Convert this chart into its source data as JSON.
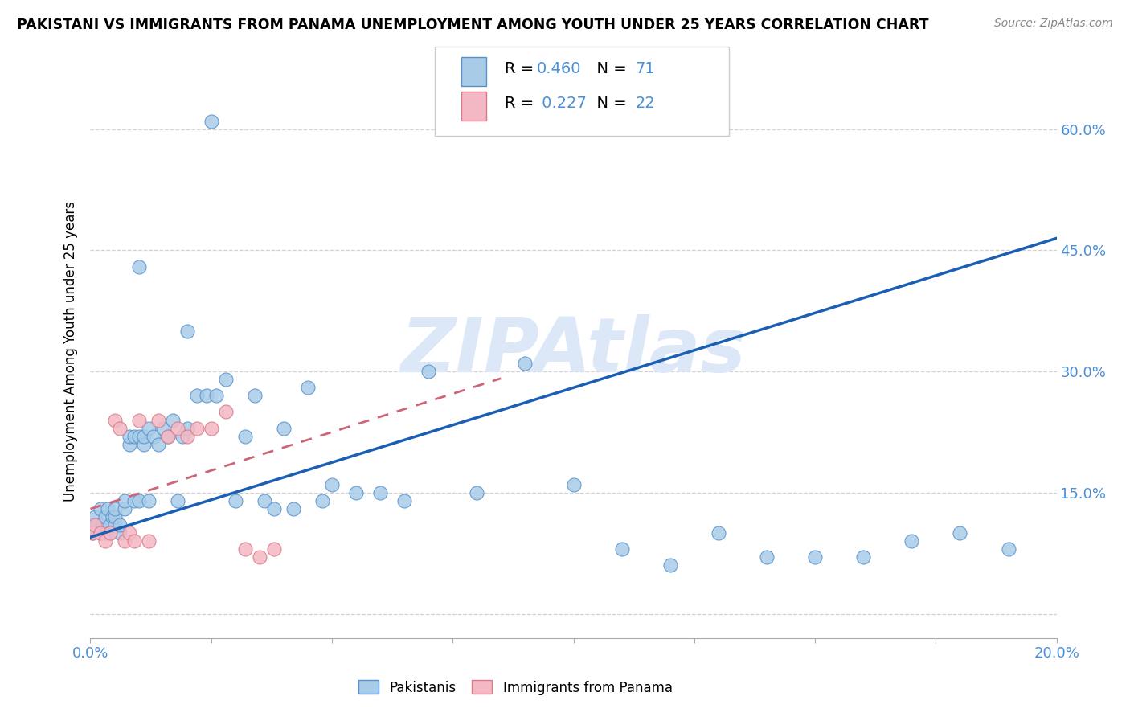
{
  "title": "PAKISTANI VS IMMIGRANTS FROM PANAMA UNEMPLOYMENT AMONG YOUTH UNDER 25 YEARS CORRELATION CHART",
  "source": "Source: ZipAtlas.com",
  "ylabel": "Unemployment Among Youth under 25 years",
  "xrange": [
    0.0,
    0.2
  ],
  "yrange": [
    -0.03,
    0.68
  ],
  "ytick_vals": [
    0.0,
    0.15,
    0.3,
    0.45,
    0.6
  ],
  "ytick_labels": [
    "",
    "15.0%",
    "30.0%",
    "45.0%",
    "60.0%"
  ],
  "xtick_vals": [
    0.0,
    0.025,
    0.05,
    0.075,
    0.1,
    0.125,
    0.15,
    0.175,
    0.2
  ],
  "xtick_labels": [
    "0.0%",
    "",
    "",
    "",
    "",
    "",
    "",
    "",
    "20.0%"
  ],
  "legend_r1": "0.460",
  "legend_n1": "71",
  "legend_r2": "0.227",
  "legend_n2": "22",
  "blue_scatter_face": "#a8cce8",
  "blue_scatter_edge": "#5590cc",
  "pink_scatter_face": "#f4b8c4",
  "pink_scatter_edge": "#d87888",
  "blue_line_color": "#1a5fb4",
  "pink_line_color": "#cc6677",
  "text_blue": "#4a90d9",
  "watermark_text": "ZIPAtlas",
  "watermark_color": "#dce8f8",
  "pakistanis_x": [
    0.0005,
    0.001,
    0.001,
    0.0015,
    0.002,
    0.002,
    0.0025,
    0.003,
    0.003,
    0.0035,
    0.004,
    0.004,
    0.0045,
    0.005,
    0.005,
    0.005,
    0.006,
    0.006,
    0.007,
    0.007,
    0.008,
    0.008,
    0.009,
    0.009,
    0.01,
    0.01,
    0.011,
    0.011,
    0.012,
    0.012,
    0.013,
    0.014,
    0.015,
    0.016,
    0.017,
    0.018,
    0.019,
    0.02,
    0.022,
    0.024,
    0.026,
    0.028,
    0.03,
    0.032,
    0.034,
    0.036,
    0.038,
    0.04,
    0.042,
    0.045,
    0.048,
    0.05,
    0.055,
    0.06,
    0.065,
    0.07,
    0.08,
    0.09,
    0.1,
    0.11,
    0.12,
    0.13,
    0.14,
    0.15,
    0.16,
    0.17,
    0.18,
    0.19,
    0.01,
    0.02,
    0.025
  ],
  "pakistanis_y": [
    0.1,
    0.11,
    0.12,
    0.11,
    0.1,
    0.13,
    0.11,
    0.12,
    0.1,
    0.13,
    0.11,
    0.1,
    0.12,
    0.11,
    0.12,
    0.13,
    0.1,
    0.11,
    0.13,
    0.14,
    0.21,
    0.22,
    0.14,
    0.22,
    0.14,
    0.22,
    0.21,
    0.22,
    0.23,
    0.14,
    0.22,
    0.21,
    0.23,
    0.22,
    0.24,
    0.14,
    0.22,
    0.23,
    0.27,
    0.27,
    0.27,
    0.29,
    0.14,
    0.22,
    0.27,
    0.14,
    0.13,
    0.23,
    0.13,
    0.28,
    0.14,
    0.16,
    0.15,
    0.15,
    0.14,
    0.3,
    0.15,
    0.31,
    0.16,
    0.08,
    0.06,
    0.1,
    0.07,
    0.07,
    0.07,
    0.09,
    0.1,
    0.08,
    0.43,
    0.35,
    0.61
  ],
  "panama_x": [
    0.0005,
    0.001,
    0.002,
    0.003,
    0.004,
    0.005,
    0.006,
    0.007,
    0.008,
    0.009,
    0.01,
    0.012,
    0.014,
    0.016,
    0.018,
    0.02,
    0.022,
    0.025,
    0.028,
    0.032,
    0.035,
    0.038
  ],
  "panama_y": [
    0.1,
    0.11,
    0.1,
    0.09,
    0.1,
    0.24,
    0.23,
    0.09,
    0.1,
    0.09,
    0.24,
    0.09,
    0.24,
    0.22,
    0.23,
    0.22,
    0.23,
    0.23,
    0.25,
    0.08,
    0.07,
    0.08
  ]
}
